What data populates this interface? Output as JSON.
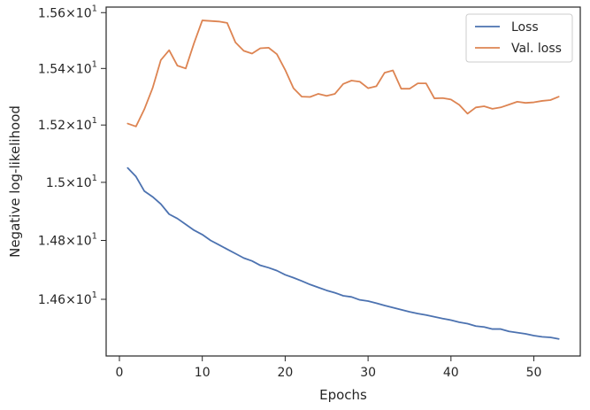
{
  "chart_data": {
    "type": "line",
    "xlabel": "Epochs",
    "ylabel": "Negative log-likelihood",
    "yscale": "log",
    "xlim": [
      -1.6,
      55.6
    ],
    "ylim": [
      14.41,
      15.62
    ],
    "xticks": [
      {
        "value": 0,
        "label": "0"
      },
      {
        "value": 10,
        "label": "10"
      },
      {
        "value": 20,
        "label": "20"
      },
      {
        "value": 30,
        "label": "30"
      },
      {
        "value": 40,
        "label": "40"
      },
      {
        "value": 50,
        "label": "50"
      }
    ],
    "yticks": [
      {
        "value": 14.6,
        "base": "1.46",
        "exp": "1"
      },
      {
        "value": 14.8,
        "base": "1.48",
        "exp": "1"
      },
      {
        "value": 15.0,
        "base": "1.5",
        "exp": "1"
      },
      {
        "value": 15.2,
        "base": "1.52",
        "exp": "1"
      },
      {
        "value": 15.4,
        "base": "1.54",
        "exp": "1"
      },
      {
        "value": 15.6,
        "base": "1.56",
        "exp": "1"
      }
    ],
    "grid": false,
    "legend_position": "top-right",
    "x": [
      1,
      2,
      3,
      4,
      5,
      6,
      7,
      8,
      9,
      10,
      11,
      12,
      13,
      14,
      15,
      16,
      17,
      18,
      19,
      20,
      21,
      22,
      23,
      24,
      25,
      26,
      27,
      28,
      29,
      30,
      31,
      32,
      33,
      34,
      35,
      36,
      37,
      38,
      39,
      40,
      41,
      42,
      43,
      44,
      45,
      46,
      47,
      48,
      49,
      50,
      51,
      52,
      53
    ],
    "series": [
      {
        "name": "Loss",
        "color": "#4c72b0",
        "values": [
          15.05,
          15.02,
          14.97,
          14.95,
          14.925,
          14.89,
          14.875,
          14.855,
          14.835,
          14.82,
          14.8,
          14.785,
          14.77,
          14.755,
          14.74,
          14.73,
          14.715,
          14.707,
          14.697,
          14.683,
          14.673,
          14.662,
          14.65,
          14.64,
          14.63,
          14.622,
          14.612,
          14.608,
          14.598,
          14.594,
          14.587,
          14.579,
          14.572,
          14.565,
          14.558,
          14.552,
          14.547,
          14.541,
          14.535,
          14.53,
          14.523,
          14.518,
          14.51,
          14.507,
          14.5,
          14.5,
          14.492,
          14.488,
          14.484,
          14.478,
          14.474,
          14.472,
          14.467
        ]
      },
      {
        "name": "Val. loss",
        "color": "#dd8452",
        "values": [
          15.205,
          15.195,
          15.255,
          15.33,
          15.43,
          15.465,
          15.41,
          15.4,
          15.49,
          15.572,
          15.57,
          15.568,
          15.563,
          15.493,
          15.463,
          15.453,
          15.472,
          15.474,
          15.451,
          15.395,
          15.33,
          15.3,
          15.299,
          15.31,
          15.303,
          15.31,
          15.345,
          15.357,
          15.353,
          15.33,
          15.337,
          15.385,
          15.393,
          15.328,
          15.328,
          15.347,
          15.347,
          15.294,
          15.295,
          15.29,
          15.271,
          15.24,
          15.262,
          15.266,
          15.257,
          15.262,
          15.272,
          15.282,
          15.278,
          15.28,
          15.285,
          15.288,
          15.3
        ]
      }
    ]
  }
}
